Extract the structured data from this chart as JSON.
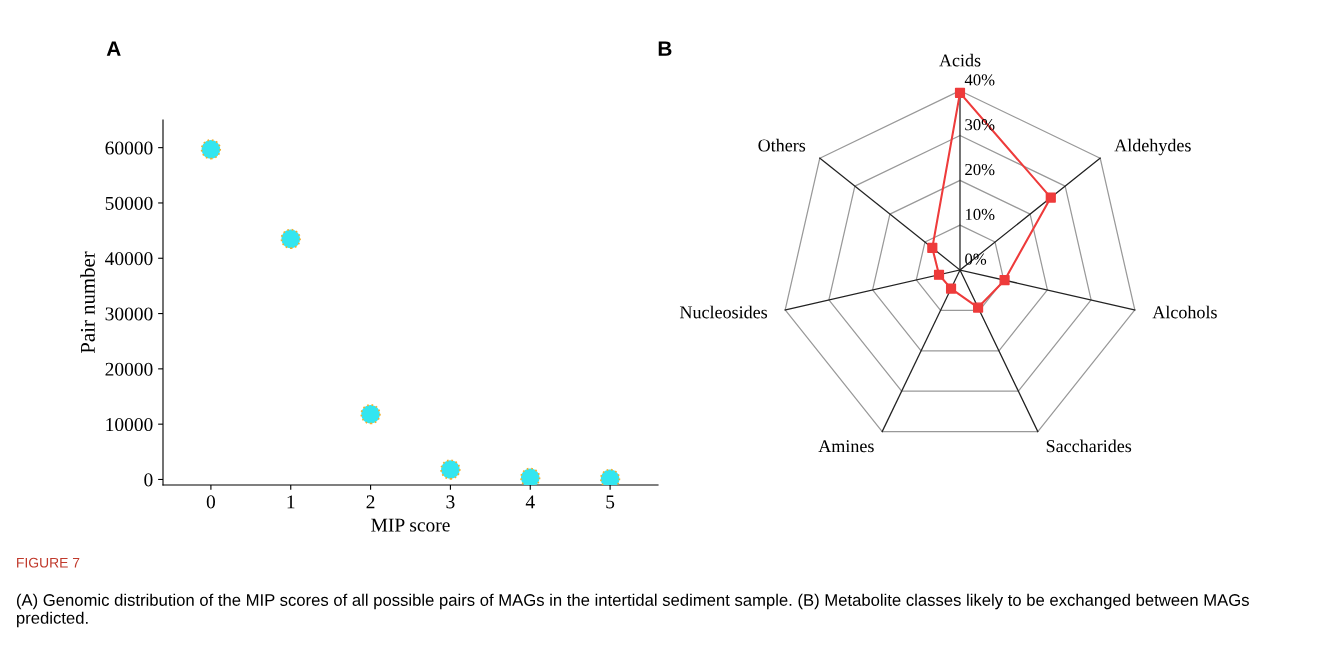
{
  "chart_data": [
    {
      "type": "scatter",
      "xlabel": "MIP score",
      "ylabel": "Pair number",
      "x": [
        0,
        1,
        2,
        3,
        4,
        5
      ],
      "series": [
        {
          "color": "#33e6f0",
          "values": [
            59700,
            43500,
            11800,
            1800,
            300,
            100
          ]
        }
      ],
      "xlim": [
        -0.6,
        5.6
      ],
      "xticks": [
        0,
        1,
        2,
        3,
        4,
        5
      ],
      "ylim": [
        -1000,
        65000
      ],
      "yticks": [
        0,
        10000,
        20000,
        30000,
        40000,
        50000,
        60000
      ],
      "marker": "circle",
      "grid": false,
      "annotations": [
        "A",
        "FIGURE 7",
        "(A) Genomic distribution of the MIP scores of all possible pairs of MAGs in the intertidal sediment sample. (B) Metabolite classes likely to be exchanged between MAGs predicted."
      ]
    },
    {
      "type": "radar",
      "categories": [
        "Acids",
        "Aldehydes",
        "Alcohols",
        "Saccharides",
        "Amines",
        "Nucleosides",
        "Others"
      ],
      "series": [
        {
          "color": "#ee3b3b",
          "values": [
            39.5,
            25.9,
            10.2,
            9.3,
            4.6,
            4.8,
            7.9
          ]
        }
      ],
      "ylim": [
        0,
        40
      ],
      "yticks": [
        {
          "value": 0,
          "label": "0%"
        },
        {
          "value": 10,
          "label": "10%"
        },
        {
          "value": 20,
          "label": "20%"
        },
        {
          "value": 30,
          "label": "30%"
        },
        {
          "value": 40,
          "label": "40%"
        }
      ],
      "marker": "square",
      "annotations": [
        "B"
      ]
    }
  ]
}
